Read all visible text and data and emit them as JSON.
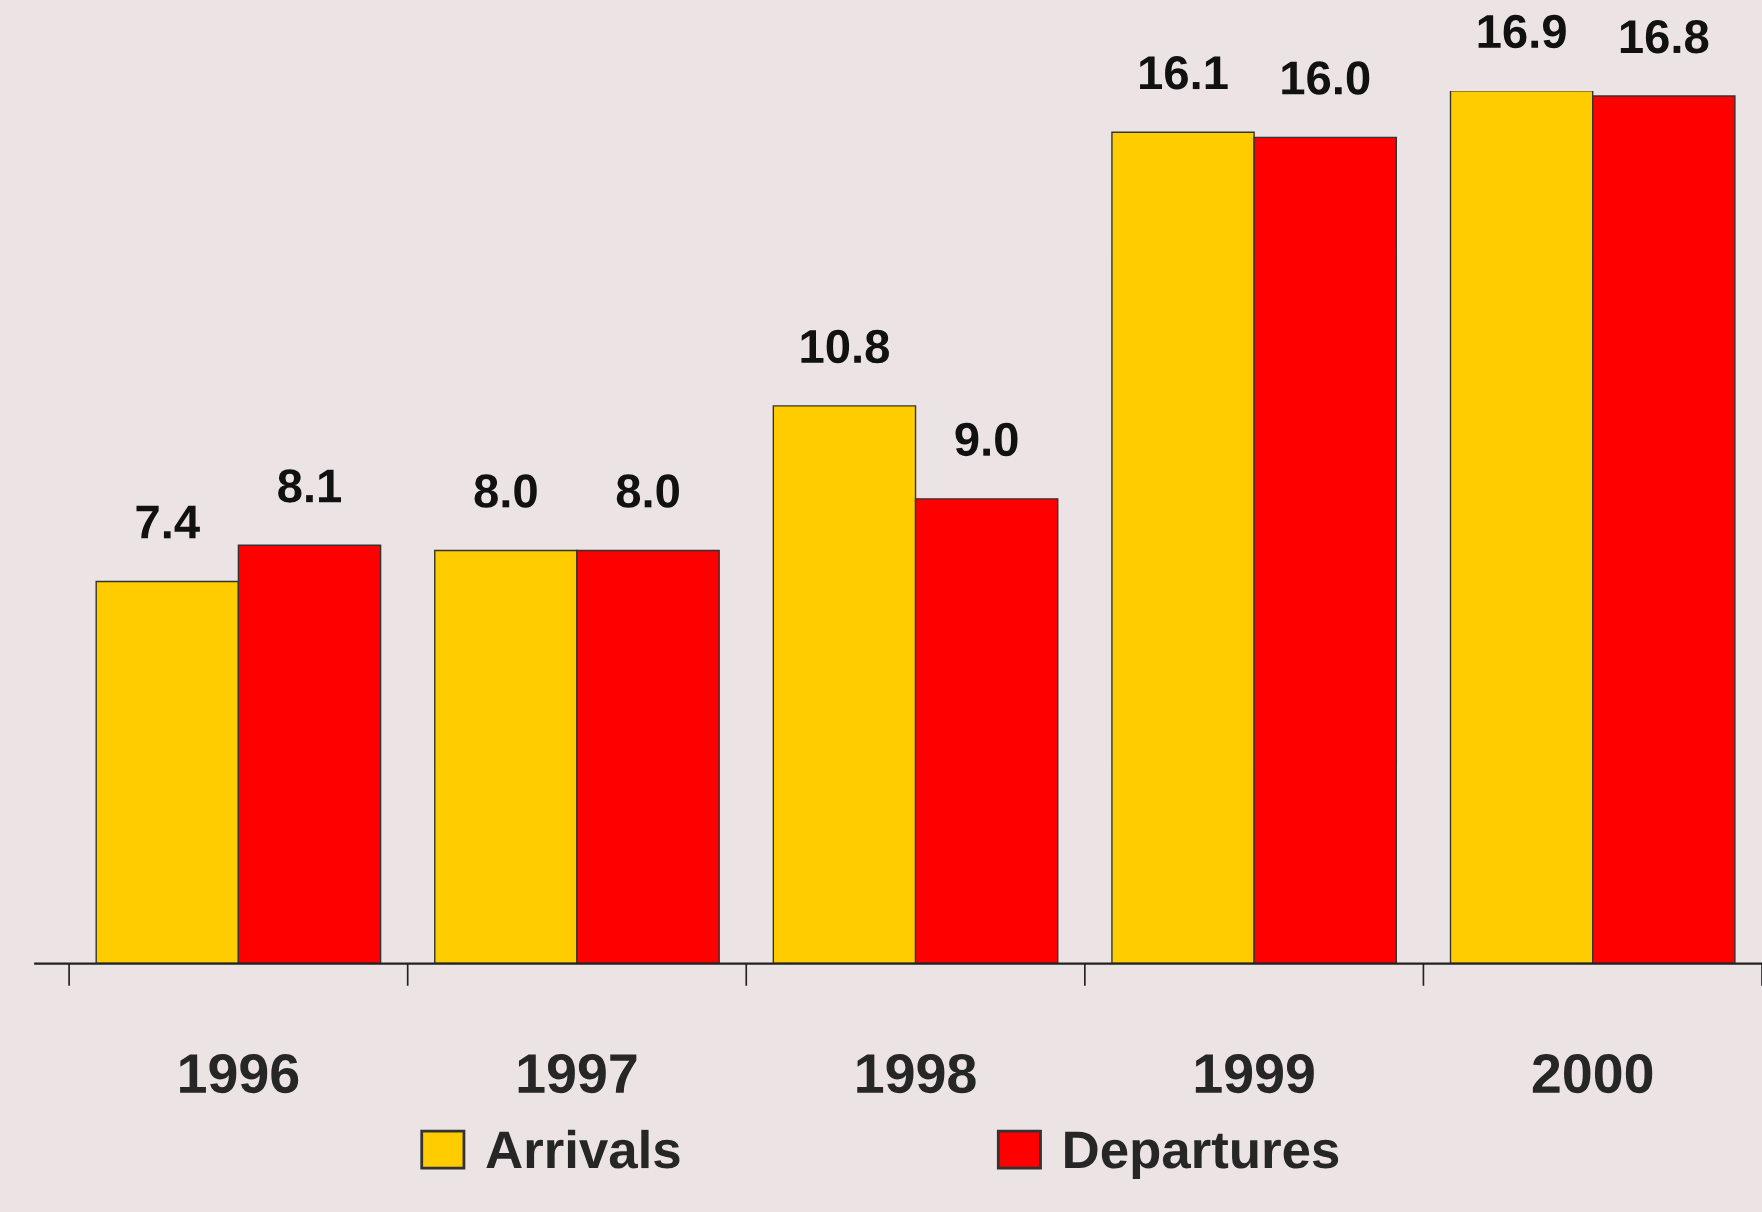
{
  "chart_data": {
    "type": "bar",
    "categories": [
      "1996",
      "1997",
      "1998",
      "1999",
      "2000"
    ],
    "series": [
      {
        "name": "Arrivals",
        "color": "#ffcc00",
        "values": [
          7.4,
          8.0,
          10.8,
          16.1,
          16.9
        ],
        "value_labels": [
          "7.4",
          "8.0",
          "10.8",
          "16.1",
          "16.9"
        ]
      },
      {
        "name": "Departures",
        "color": "#ff0000",
        "values": [
          8.1,
          8.0,
          9.0,
          16.0,
          16.8
        ],
        "value_labels": [
          "8.1",
          "8.0",
          "9.0",
          "16.0",
          "16.8"
        ]
      }
    ],
    "legend": "bottom",
    "grid": false
  }
}
